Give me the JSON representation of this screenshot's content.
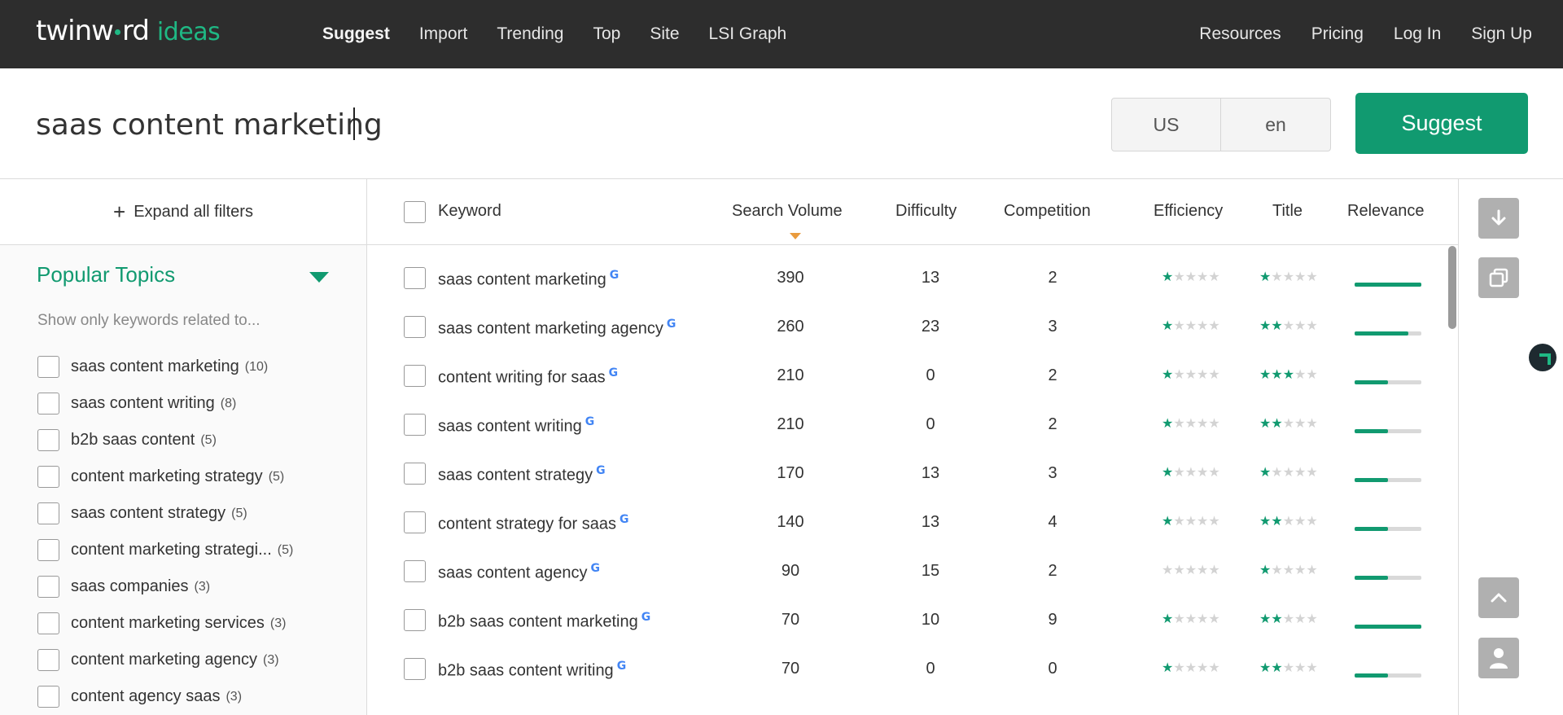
{
  "brand": {
    "logo_main": "twinw",
    "logo_main_end": "rd",
    "logo_sub": "ideas"
  },
  "nav": {
    "left": [
      {
        "label": "Suggest",
        "active": true
      },
      {
        "label": "Import"
      },
      {
        "label": "Trending"
      },
      {
        "label": "Top"
      },
      {
        "label": "Site"
      },
      {
        "label": "LSI Graph"
      }
    ],
    "right": [
      {
        "label": "Resources"
      },
      {
        "label": "Pricing"
      },
      {
        "label": "Log In"
      },
      {
        "label": "Sign Up"
      }
    ]
  },
  "search": {
    "query": "saas content marketing",
    "country": "US",
    "language": "en",
    "button": "Suggest"
  },
  "sidebar": {
    "expand_label": "Expand all filters",
    "topics_title": "Popular Topics",
    "topics_hint": "Show only keywords related to...",
    "topics": [
      {
        "label": "saas content marketing",
        "count": "(10)"
      },
      {
        "label": "saas content writing",
        "count": "(8)"
      },
      {
        "label": "b2b saas content",
        "count": "(5)"
      },
      {
        "label": "content marketing strategy",
        "count": "(5)"
      },
      {
        "label": "saas content strategy",
        "count": "(5)"
      },
      {
        "label": "content marketing strategi...",
        "count": "(5)"
      },
      {
        "label": "saas companies",
        "count": "(3)"
      },
      {
        "label": "content marketing services",
        "count": "(3)"
      },
      {
        "label": "content marketing agency",
        "count": "(3)"
      },
      {
        "label": "content agency saas",
        "count": "(3)"
      }
    ]
  },
  "table": {
    "headers": {
      "keyword": "Keyword",
      "search_volume": "Search Volume",
      "difficulty": "Difficulty",
      "competition": "Competition",
      "efficiency": "Efficiency",
      "title": "Title",
      "relevance": "Relevance"
    },
    "google_icon": "G",
    "rows": [
      {
        "keyword": "saas content marketing",
        "volume": "390",
        "difficulty": "13",
        "competition": "2",
        "efficiency": 1,
        "title": 1,
        "relevance": 1.0
      },
      {
        "keyword": "saas content marketing agency",
        "volume": "260",
        "difficulty": "23",
        "competition": "3",
        "efficiency": 1,
        "title": 2,
        "relevance": 0.8
      },
      {
        "keyword": "content writing for saas",
        "volume": "210",
        "difficulty": "0",
        "competition": "2",
        "efficiency": 1,
        "title": 3,
        "relevance": 0.5
      },
      {
        "keyword": "saas content writing",
        "volume": "210",
        "difficulty": "0",
        "competition": "2",
        "efficiency": 1,
        "title": 2,
        "relevance": 0.5
      },
      {
        "keyword": "saas content strategy",
        "volume": "170",
        "difficulty": "13",
        "competition": "3",
        "efficiency": 1,
        "title": 1,
        "relevance": 0.5
      },
      {
        "keyword": "content strategy for saas",
        "volume": "140",
        "difficulty": "13",
        "competition": "4",
        "efficiency": 1,
        "title": 2,
        "relevance": 0.5
      },
      {
        "keyword": "saas content agency",
        "volume": "90",
        "difficulty": "15",
        "competition": "2",
        "efficiency": 0,
        "title": 1,
        "relevance": 0.5
      },
      {
        "keyword": "b2b saas content marketing",
        "volume": "70",
        "difficulty": "10",
        "competition": "9",
        "efficiency": 1,
        "title": 2,
        "relevance": 1.0
      },
      {
        "keyword": "b2b saas content writing",
        "volume": "70",
        "difficulty": "0",
        "competition": "0",
        "efficiency": 1,
        "title": 2,
        "relevance": 0.5
      }
    ]
  },
  "tools": {
    "download_icon": "download-icon",
    "copy_icon": "copy-icon",
    "scroll_top_icon": "chevron-up-icon",
    "user_icon": "user-icon"
  },
  "colors": {
    "brand_green": "#119a70",
    "nav_bg": "#2d2d2d",
    "sort_arrow": "#e99b3d"
  }
}
